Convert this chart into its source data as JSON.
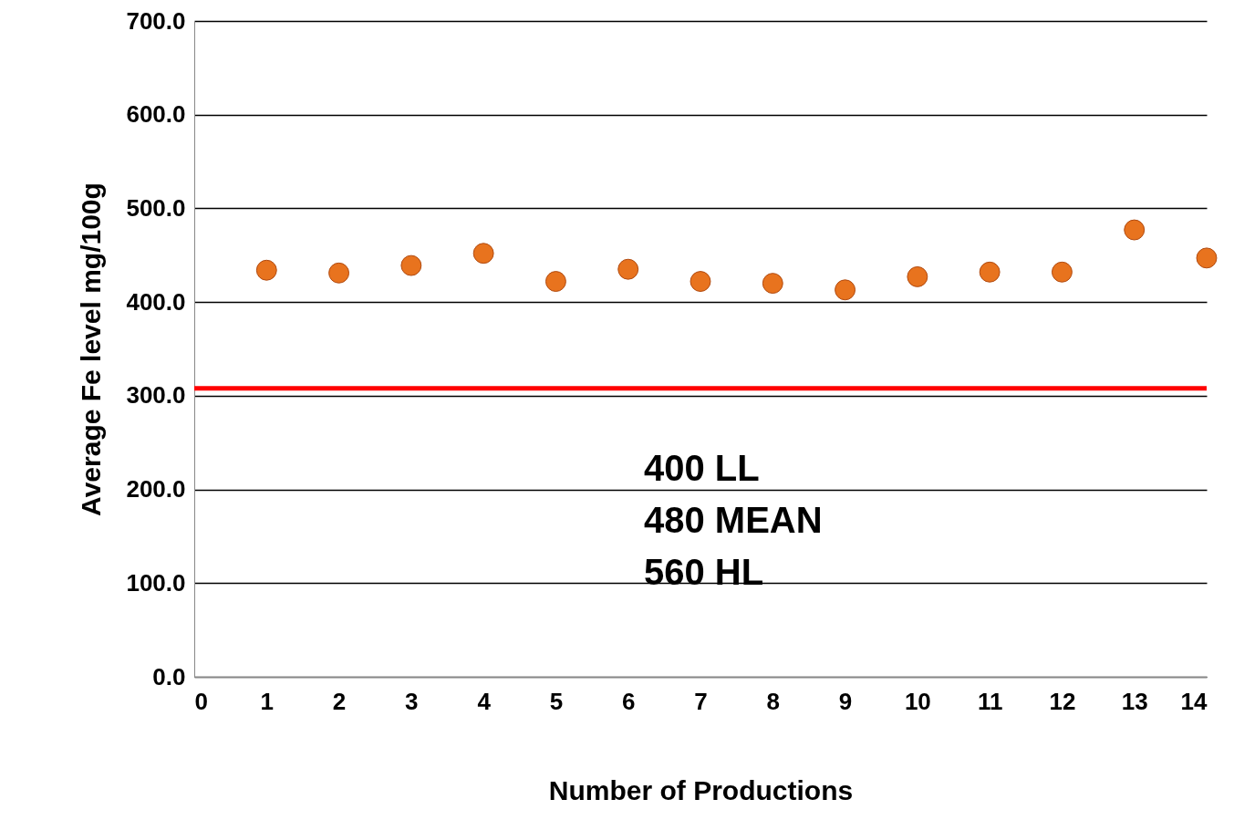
{
  "chart_data": {
    "type": "scatter",
    "xlabel": "Number of Productions",
    "ylabel": "Average Fe level mg/100g",
    "x": [
      1,
      2,
      3,
      4,
      5,
      6,
      7,
      8,
      9,
      10,
      11,
      12,
      13,
      14
    ],
    "series": [
      {
        "color": "#e8731e",
        "values": [
          434,
          431,
          439,
          452,
          422,
          435,
          422,
          420,
          413,
          427,
          432,
          432,
          477,
          447
        ]
      }
    ],
    "xlim": [
      0,
      14
    ],
    "xticks": [
      0,
      1,
      2,
      3,
      4,
      5,
      6,
      7,
      8,
      9,
      10,
      11,
      12,
      13,
      14
    ],
    "ylim": [
      0,
      700
    ],
    "yticks": [
      {
        "value": 0,
        "label": "0.0"
      },
      {
        "value": 100,
        "label": "100.0"
      },
      {
        "value": 200,
        "label": "200.0"
      },
      {
        "value": 300,
        "label": "300.0"
      },
      {
        "value": 400,
        "label": "400.0"
      },
      {
        "value": 500,
        "label": "500.0"
      },
      {
        "value": 600,
        "label": "600.0"
      },
      {
        "value": 700,
        "label": "700.0"
      }
    ],
    "ref_lines": [
      {
        "axis": "y",
        "value": 308,
        "color": "#ff0000"
      }
    ],
    "annotations": [
      "400 LL",
      "480 MEAN",
      "560 HL"
    ],
    "grid": "y",
    "marker": "circle"
  }
}
